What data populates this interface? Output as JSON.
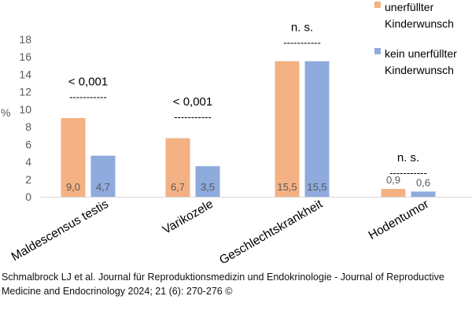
{
  "chart_data": {
    "type": "bar",
    "ylabel": "%",
    "ylim": [
      0,
      18
    ],
    "yticks": [
      0,
      2,
      4,
      6,
      8,
      10,
      12,
      14,
      16,
      18
    ],
    "grid": false,
    "legend_position": "top-right",
    "categories": [
      "Maldescensus testis",
      "Varikozele",
      "Geschlechtskrankheit",
      "Hodentumor"
    ],
    "series": [
      {
        "name": "unerfüllter Kinderwunsch",
        "color": "#f4b183",
        "values": [
          9.0,
          6.7,
          15.5,
          0.9
        ],
        "labels": [
          "9,0",
          "6,7",
          "15,5",
          "0,9"
        ]
      },
      {
        "name": "kein unerfüllter Kinderwunsch",
        "color": "#8faadc",
        "values": [
          4.7,
          3.5,
          15.5,
          0.6
        ],
        "labels": [
          "4,7",
          "3,5",
          "15,5",
          "0,6"
        ]
      }
    ],
    "annotations": [
      {
        "category": "Maldescensus testis",
        "text": "< 0,001",
        "value": 11.3
      },
      {
        "category": "Varikozele",
        "text": "< 0,001",
        "value": 9.0
      },
      {
        "category": "Geschlechtskrankheit",
        "text": "n. s.",
        "value": 17.5
      },
      {
        "category": "Hodentumor",
        "text": "n. s.",
        "value": 2.6
      }
    ],
    "dash_text": "-----------"
  },
  "legend": {
    "items": [
      {
        "line1": "unerfüllter",
        "line2": "Kinderwunsch",
        "color": "#f4b183"
      },
      {
        "line1": "kein unerfüllter",
        "line2": "Kinderwunsch",
        "color": "#8faadc"
      }
    ]
  },
  "caption": {
    "line1": "Schmalbrock LJ et al. Journal für Reproduktionsmedizin und Endokrinologie - Journal of Reproductive",
    "line2": "Medicine and Endocrinology 2024; 21 (6): 270-276 ©"
  }
}
